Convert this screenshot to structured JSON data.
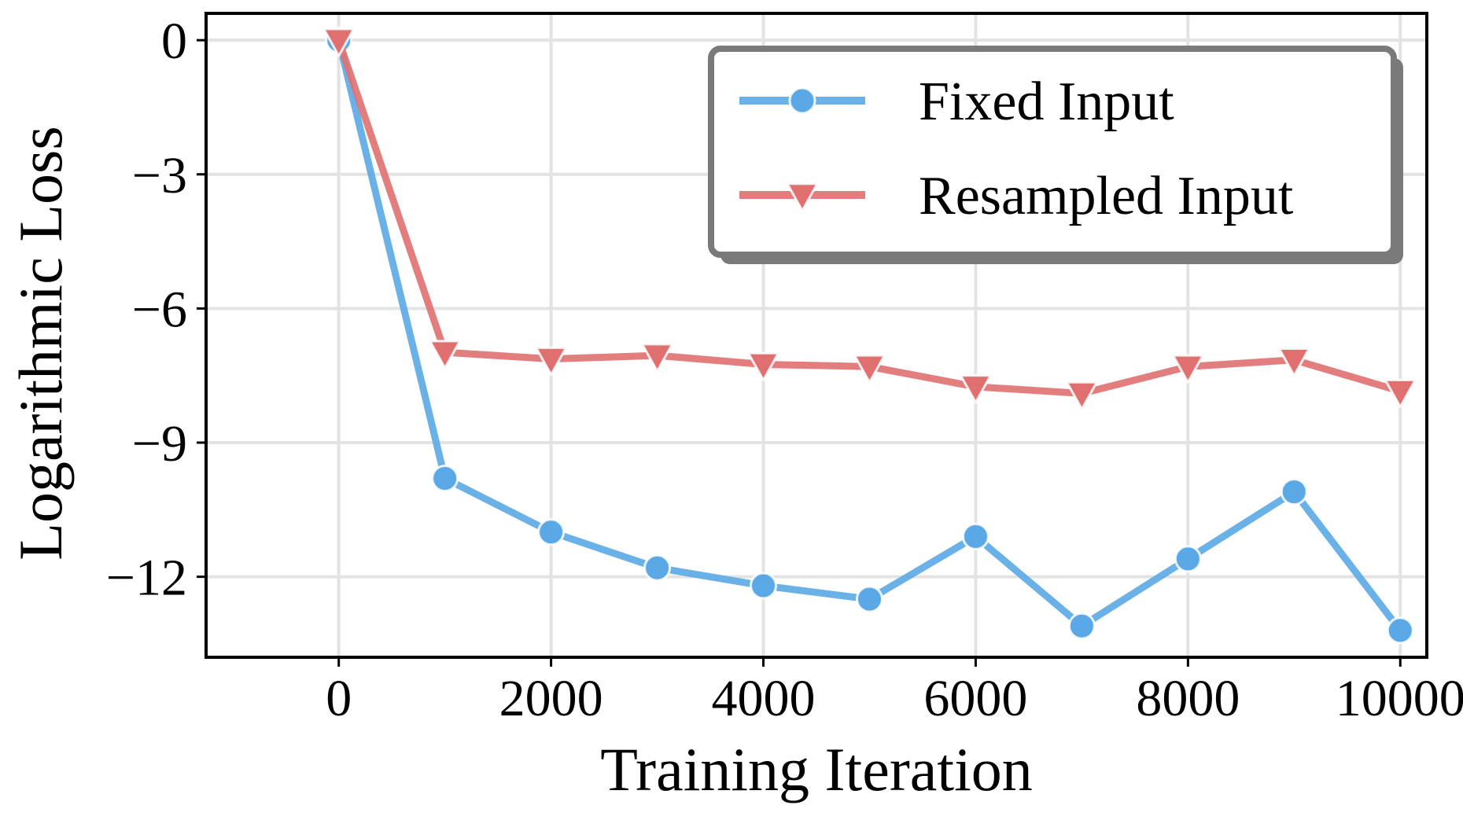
{
  "chart_data": {
    "type": "line",
    "xlabel": "Training Iteration",
    "ylabel": "Logarithmic Loss",
    "xlim": [
      -1250,
      10250
    ],
    "ylim": [
      -13.8,
      0.6
    ],
    "x_ticks": [
      0,
      2000,
      4000,
      6000,
      8000,
      10000
    ],
    "x_tick_labels": [
      "0",
      "2000",
      "4000",
      "6000",
      "8000",
      "10000"
    ],
    "y_ticks": [
      0,
      -3,
      -6,
      -9,
      -12
    ],
    "y_tick_labels": [
      "0",
      "−3",
      "−6",
      "−9",
      "−12"
    ],
    "grid": true,
    "legend_position": "top-right",
    "x": [
      0,
      1000,
      2000,
      3000,
      4000,
      5000,
      6000,
      7000,
      8000,
      9000,
      10000
    ],
    "series": [
      {
        "name": "Fixed Input",
        "marker": "circle",
        "color": "#5aa9e6",
        "values": [
          0,
          -9.8,
          -11.0,
          -11.8,
          -12.2,
          -12.5,
          -11.1,
          -13.1,
          -11.6,
          -10.1,
          -13.2
        ]
      },
      {
        "name": "Resampled Input",
        "marker": "triangle-down",
        "color": "#e07070",
        "values": [
          0,
          -6.98,
          -7.13,
          -7.05,
          -7.25,
          -7.3,
          -7.75,
          -7.9,
          -7.3,
          -7.15,
          -7.85
        ]
      }
    ]
  }
}
